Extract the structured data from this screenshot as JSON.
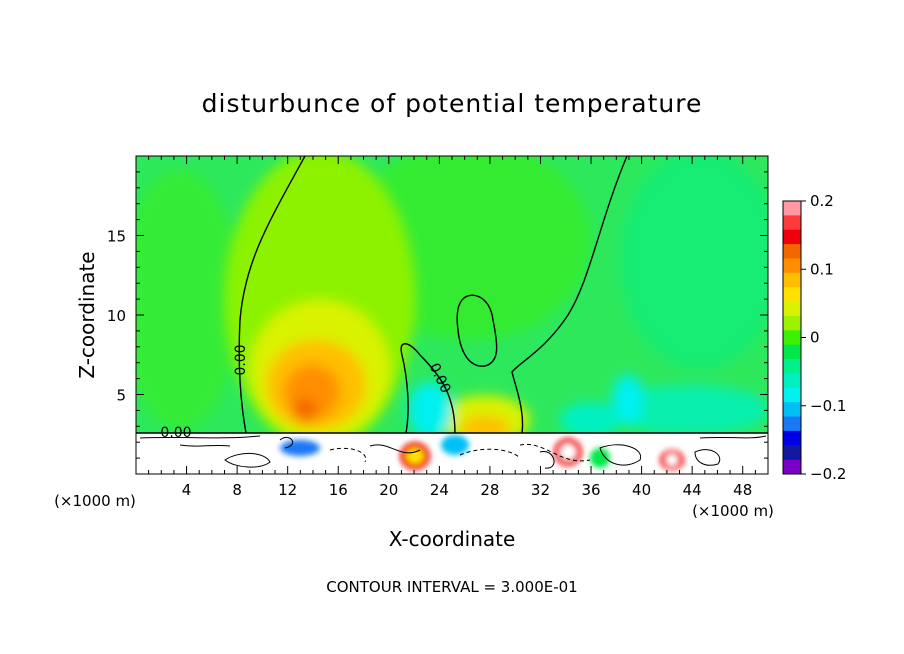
{
  "chart_data": {
    "type": "heatmap",
    "title": "disturbunce of potential temperature",
    "xlabel": "X-coordinate",
    "ylabel": "Z-coordinate",
    "x_unit_label_left": "(×1000 m)",
    "x_unit_label_right": "(×1000 m)",
    "x_ticks": [
      4,
      8,
      12,
      16,
      20,
      24,
      28,
      32,
      36,
      40,
      44,
      48
    ],
    "y_ticks": [
      5,
      10,
      15
    ],
    "xlim": [
      0,
      50
    ],
    "ylim": [
      0,
      20
    ],
    "footer": "CONTOUR INTERVAL = 3.000E-01",
    "contour_labels": [
      "0.00",
      "0.00",
      "0.00"
    ],
    "colorbar": {
      "range": [
        -0.2,
        0.2
      ],
      "tick_labels": [
        "0.2",
        "0.1",
        "0",
        "−0.1",
        "−0.2"
      ],
      "tick_values": [
        0.2,
        0.1,
        0,
        -0.1,
        -0.2
      ],
      "colors": [
        "#ff9aa5",
        "#ff3a3a",
        "#f0000a",
        "#f26700",
        "#ff8f00",
        "#ffbf00",
        "#ffe100",
        "#d9f200",
        "#9cf200",
        "#3cf000",
        "#00e84a",
        "#00f08c",
        "#00f0c2",
        "#00f0f0",
        "#00bff5",
        "#1a78f5",
        "#0000e6",
        "#1418a0",
        "#7a00c8"
      ]
    },
    "features": [
      {
        "name": "warm-anomaly-main",
        "x": 14,
        "z": 5.5,
        "value": 0.12
      },
      {
        "name": "warm-anomaly-secondary",
        "x": 28,
        "z": 3.8,
        "value": 0.07
      },
      {
        "name": "cool-pocket-1",
        "x": 22.5,
        "z": 4.0,
        "value": -0.07
      },
      {
        "name": "cool-pocket-2",
        "x": 39,
        "z": 4.5,
        "value": -0.08
      },
      {
        "name": "background",
        "value": 0.01
      }
    ]
  }
}
